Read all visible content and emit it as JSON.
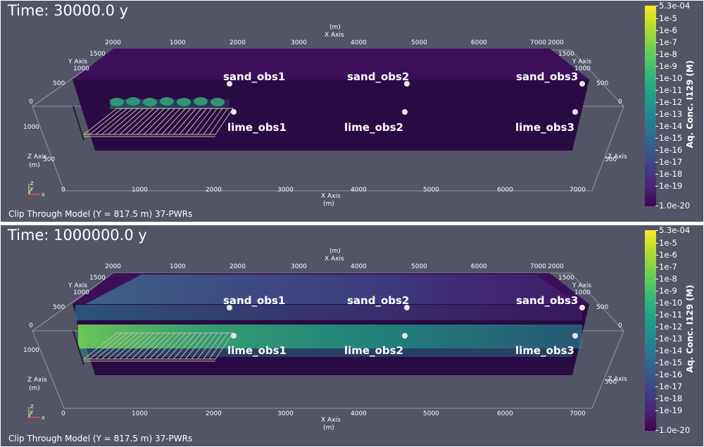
{
  "panels": [
    {
      "time_label": "Time: 30000.0 y",
      "caption": "Clip Through Model (Y = 817.5 m) 37-PWRs",
      "plume": "early"
    },
    {
      "time_label": "Time: 1000000.0 y",
      "caption": "Clip Through Model (Y = 817.5 m) 37-PWRs",
      "plume": "late"
    }
  ],
  "observation_points": [
    "sand_obs1",
    "sand_obs2",
    "sand_obs3",
    "lime_obs1",
    "lime_obs2",
    "lime_obs3"
  ],
  "axes": {
    "x_axis_label": "X Axis",
    "y_axis_label": "Y Axis",
    "z_axis_label": "Z Axis",
    "unit": "(m)",
    "x_ticks_top": [
      "1000",
      "2000",
      "3000",
      "4000",
      "5000",
      "6000",
      "7000"
    ],
    "x_ticks_bottom": [
      "0",
      "1000",
      "2000",
      "3000",
      "4000",
      "5000",
      "6000",
      "7000"
    ],
    "y_ticks": [
      "0",
      "500",
      "1000",
      "1500",
      "2000"
    ],
    "z_ticks": [
      "0",
      "500",
      "1000"
    ],
    "orientation_glyph": [
      "Z",
      "Y",
      "X"
    ]
  },
  "colorbar": {
    "title": "Aq. Conc. I129 (M)",
    "max_label": "5.3e-04",
    "min_label": "1.0e-20",
    "ticks": [
      "1e-5",
      "1e-6",
      "1e-7",
      "1e-8",
      "1e-9",
      "1e-10",
      "1e-11",
      "1e-12",
      "1e-13",
      "1e-14",
      "1e-15",
      "1e-16",
      "1e-17",
      "1e-18",
      "1e-19"
    ],
    "colormap": [
      "#fde725",
      "#b5de2b",
      "#6ece58",
      "#35b779",
      "#1f9e89",
      "#26828e",
      "#31688e",
      "#3e4989",
      "#482878",
      "#440154"
    ]
  },
  "colors": {
    "background": "#535566",
    "domain": "#2a0a42",
    "repository_grid": "#c8bea8"
  }
}
